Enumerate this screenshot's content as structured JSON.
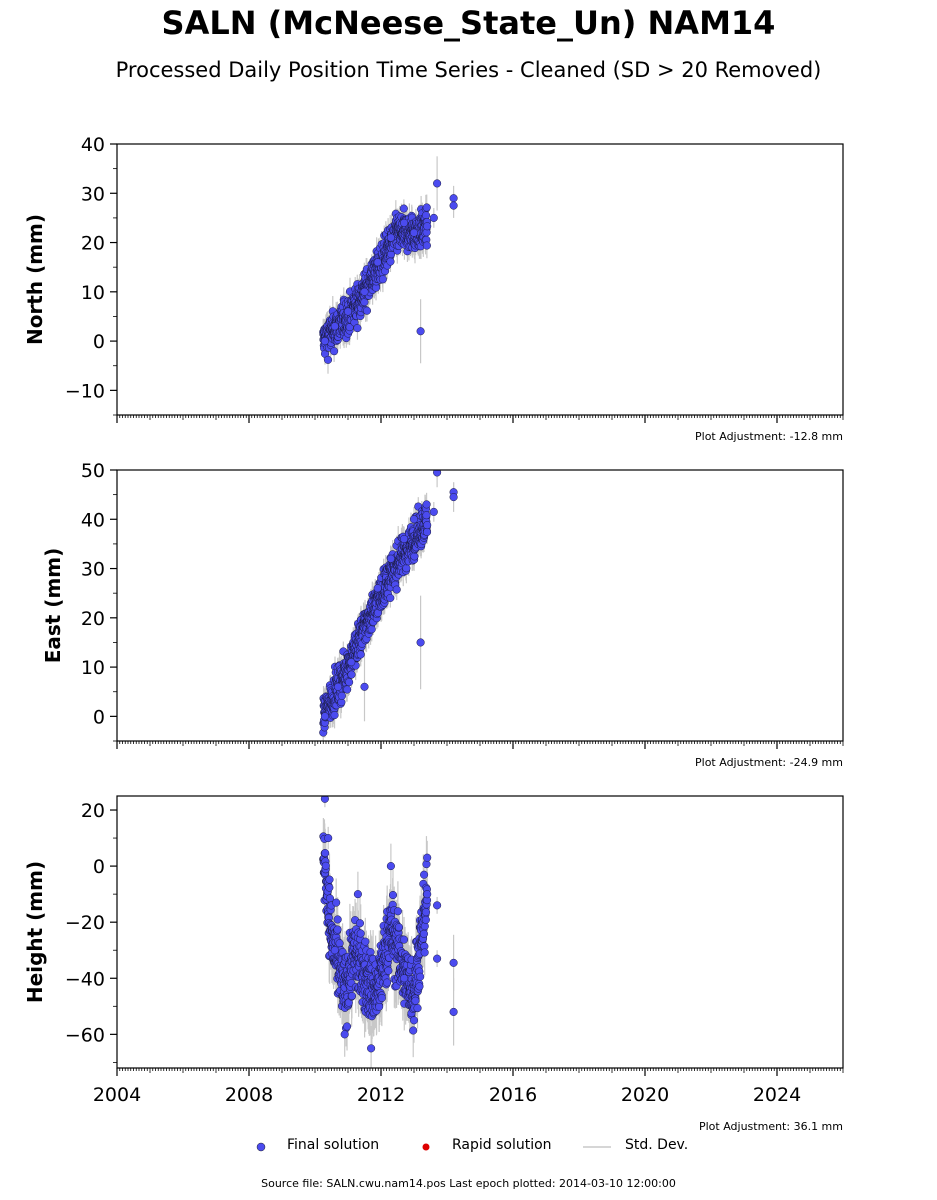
{
  "title": "SALN (McNeese_State_Un) NAM14",
  "subtitle": "Processed Daily Position Time Series - Cleaned (SD > 20 Removed)",
  "source_text": "Source file: SALN.cwu.nam14.pos  Last epoch plotted: 2014-03-10 12:00:00",
  "legend": {
    "final": "Final solution",
    "rapid": "Rapid solution",
    "std": "Std. Dev."
  },
  "colors": {
    "final": "#4b4bef",
    "rapid": "#dd0000",
    "std": "#c8c8c8"
  },
  "chart_data": {
    "type": "scatter",
    "xlim": [
      2004,
      2026
    ],
    "xticks": [
      2004,
      2008,
      2012,
      2016,
      2020,
      2024
    ],
    "panels": [
      {
        "id": "north",
        "ylabel": "North (mm)",
        "ylim": [
          -15,
          40
        ],
        "yticks": [
          -10,
          0,
          10,
          20,
          30,
          40
        ],
        "adjustment": "Plot Adjustment: -12.8 mm",
        "trend": [
          [
            2010.25,
            0
          ],
          [
            2011.0,
            5
          ],
          [
            2011.5,
            10
          ],
          [
            2012.0,
            16
          ],
          [
            2012.5,
            22
          ],
          [
            2013.0,
            22
          ],
          [
            2013.4,
            23
          ]
        ],
        "scatter": 2.6,
        "x": [
          2010.3,
          2010.6,
          2011.0,
          2011.5,
          2011.9,
          2012.3,
          2012.7,
          2013.0,
          2013.2,
          2013.6,
          2013.7,
          2014.2,
          2014.2
        ],
        "y": [
          0,
          3,
          6,
          10,
          16,
          21,
          24,
          22,
          2,
          25,
          32,
          29,
          27.5
        ],
        "err": [
          1.5,
          2,
          2,
          2.5,
          2.5,
          2.5,
          2.5,
          2.5,
          6.5,
          2,
          5.5,
          2.5,
          2.5
        ]
      },
      {
        "id": "east",
        "ylabel": "East (mm)",
        "ylim": [
          -5,
          50
        ],
        "yticks": [
          0,
          10,
          20,
          30,
          40,
          50
        ],
        "adjustment": "Plot Adjustment: -24.9 mm",
        "trend": [
          [
            2010.25,
            0
          ],
          [
            2011.0,
            10
          ],
          [
            2011.5,
            18
          ],
          [
            2012.0,
            25
          ],
          [
            2012.5,
            31
          ],
          [
            2013.0,
            36
          ],
          [
            2013.4,
            40
          ]
        ],
        "scatter": 2.6,
        "x": [
          2010.3,
          2010.7,
          2011.1,
          2011.5,
          2011.9,
          2012.3,
          2012.7,
          2013.0,
          2013.2,
          2013.6,
          2013.7,
          2014.2,
          2014.2
        ],
        "y": [
          0,
          6,
          11,
          6,
          26,
          32,
          36,
          40,
          15,
          41.5,
          49.5,
          45.5,
          44.5
        ],
        "err": [
          1.5,
          2,
          2,
          7,
          2.5,
          2.5,
          2.5,
          2.5,
          9.5,
          2,
          3,
          2,
          3
        ]
      },
      {
        "id": "height",
        "ylabel": "Height (mm)",
        "ylim": [
          -72,
          25
        ],
        "yticks": [
          -60,
          -40,
          -20,
          0,
          20
        ],
        "adjustment": "Plot Adjustment: 36.1 mm",
        "trend": [
          [
            2010.25,
            5
          ],
          [
            2010.5,
            -25
          ],
          [
            2010.9,
            -45
          ],
          [
            2011.2,
            -30
          ],
          [
            2011.6,
            -42
          ],
          [
            2011.9,
            -45
          ],
          [
            2012.3,
            -22
          ],
          [
            2012.7,
            -38
          ],
          [
            2013.0,
            -45
          ],
          [
            2013.4,
            -10
          ]
        ],
        "scatter": 9,
        "x": [
          2010.3,
          2010.4,
          2010.6,
          2010.9,
          2011.3,
          2011.7,
          2012.3,
          2012.7,
          2013.0,
          2013.4,
          2013.7,
          2013.7,
          2014.2,
          2014.2
        ],
        "y": [
          24,
          10,
          -30,
          -60,
          -10,
          -65,
          0,
          -40,
          -55,
          3,
          -14,
          -33,
          -34.5,
          -52
        ],
        "err": [
          3,
          4,
          8,
          8,
          8,
          8,
          8,
          8,
          8,
          6,
          3,
          3,
          10,
          12
        ]
      }
    ]
  }
}
